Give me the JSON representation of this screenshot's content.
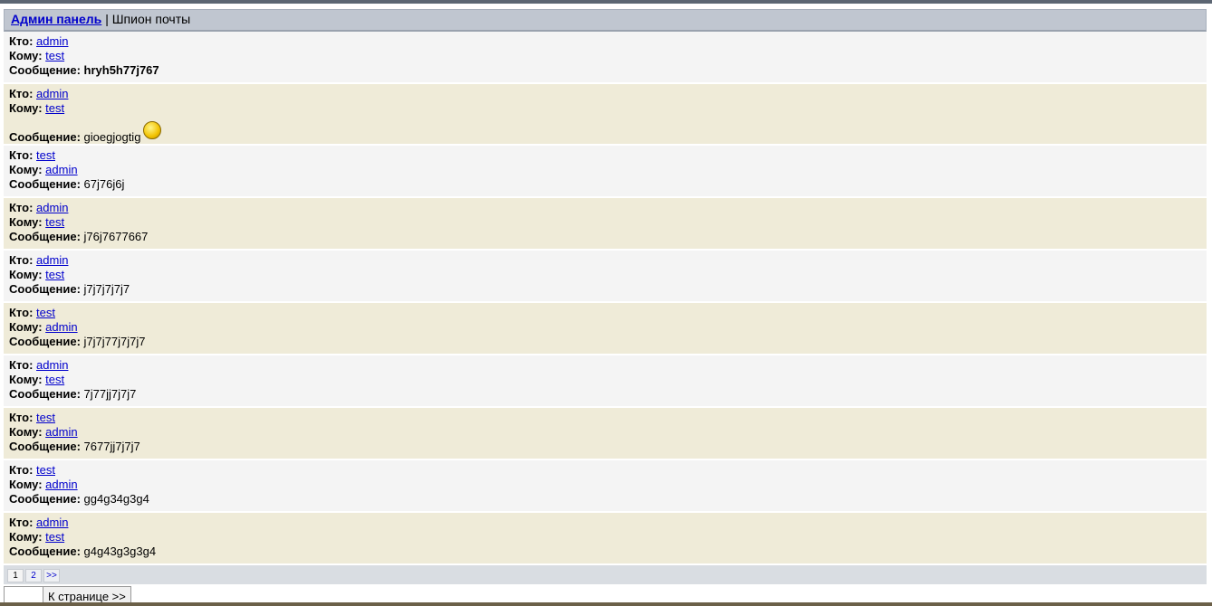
{
  "header": {
    "link": "Админ панель",
    "separator": "|",
    "title": "Шпион почты"
  },
  "labels": {
    "from": "Кто:",
    "to": "Кому:",
    "message": "Сообщение:"
  },
  "messages": [
    {
      "from": "admin",
      "to": "test",
      "text": "hryh5h77j767",
      "bold": true
    },
    {
      "from": "admin",
      "to": "test",
      "text": "gioegjogtig",
      "smiley": true
    },
    {
      "from": "test",
      "to": "admin",
      "text": "67j76j6j"
    },
    {
      "from": "admin",
      "to": "test",
      "text": "j76j7677667"
    },
    {
      "from": "admin",
      "to": "test",
      "text": "j7j7j7j7j7"
    },
    {
      "from": "test",
      "to": "admin",
      "text": "j7j7j77j7j7j7"
    },
    {
      "from": "admin",
      "to": "test",
      "text": "7j77jj7j7j7"
    },
    {
      "from": "test",
      "to": "admin",
      "text": "7677jj7j7j7"
    },
    {
      "from": "test",
      "to": "admin",
      "text": "gg4g34g3g4"
    },
    {
      "from": "admin",
      "to": "test",
      "text": "g4g43g3g3g4"
    }
  ],
  "pager": {
    "pages": [
      "1",
      "2",
      ">>"
    ],
    "current": "1"
  },
  "goto": {
    "value": "",
    "button": "К странице >>"
  },
  "icons": {
    "smiley": "smiley-emoticon-icon"
  }
}
